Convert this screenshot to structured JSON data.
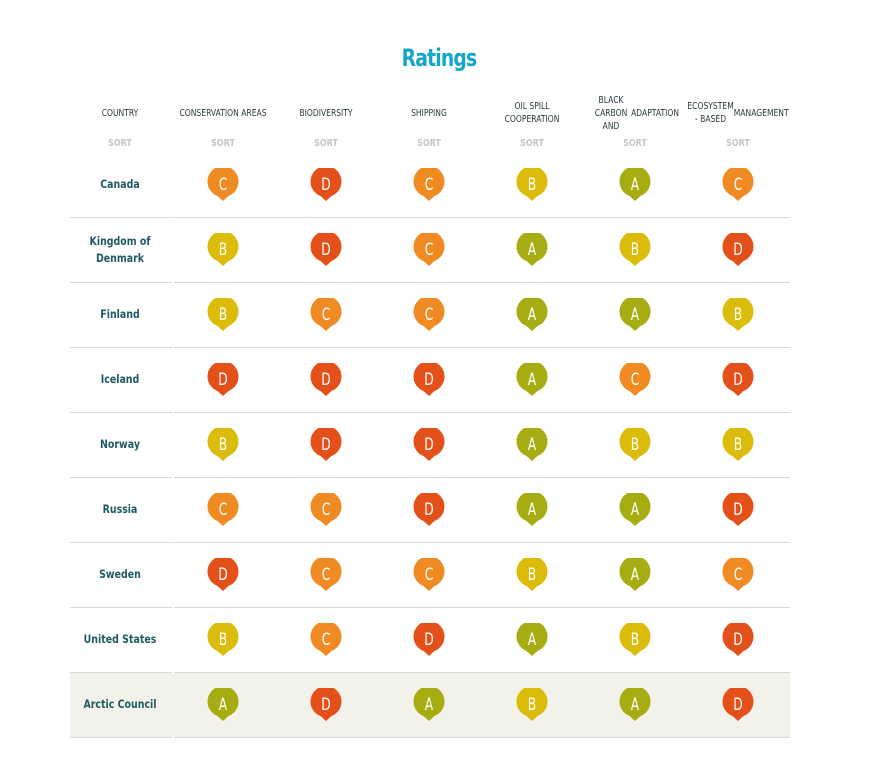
{
  "title": "Ratings",
  "colors": {
    "A": "#a5ad12",
    "B": "#dcbc0a",
    "C": "#f08a22",
    "D": "#e4501a",
    "title": "#12a7c9"
  },
  "sort_label": "SORT",
  "headers": [
    "COUNTRY",
    "CONSERVATION AREAS",
    "BIODIVERSITY",
    "SHIPPING",
    "OIL SPILL COOPERATION",
    "BLACK CARBON AND ADAPTATION",
    "ECOSYSTEM - BASED MANAGEMENT"
  ],
  "header_lines": [
    [
      "COUNTRY"
    ],
    [
      "CONSERVATION AREAS"
    ],
    [
      "BIODIVERSITY"
    ],
    [
      "SHIPPING"
    ],
    [
      "OIL SPILL COOPERATION"
    ],
    [
      "BLACK CARBON AND",
      "ADAPTATION"
    ],
    [
      "ECOSYSTEM - BASED",
      "MANAGEMENT"
    ]
  ],
  "rows": [
    {
      "country": "Canada",
      "country_lines": [
        "Canada"
      ],
      "ratings": [
        "C",
        "D",
        "C",
        "B",
        "A",
        "C"
      ]
    },
    {
      "country": "Kingdom of Denmark",
      "country_lines": [
        "Kingdom of",
        "Denmark"
      ],
      "ratings": [
        "B",
        "D",
        "C",
        "A",
        "B",
        "D"
      ]
    },
    {
      "country": "Finland",
      "country_lines": [
        "Finland"
      ],
      "ratings": [
        "B",
        "C",
        "C",
        "A",
        "A",
        "B"
      ]
    },
    {
      "country": "Iceland",
      "country_lines": [
        "Iceland"
      ],
      "ratings": [
        "D",
        "D",
        "D",
        "A",
        "C",
        "D"
      ]
    },
    {
      "country": "Norway",
      "country_lines": [
        "Norway"
      ],
      "ratings": [
        "B",
        "D",
        "D",
        "A",
        "B",
        "B"
      ]
    },
    {
      "country": "Russia",
      "country_lines": [
        "Russia"
      ],
      "ratings": [
        "C",
        "C",
        "D",
        "A",
        "A",
        "D"
      ]
    },
    {
      "country": "Sweden",
      "country_lines": [
        "Sweden"
      ],
      "ratings": [
        "D",
        "C",
        "C",
        "B",
        "A",
        "C"
      ]
    },
    {
      "country": "United States",
      "country_lines": [
        "United States"
      ],
      "ratings": [
        "B",
        "C",
        "D",
        "A",
        "B",
        "D"
      ]
    },
    {
      "country": "Arctic Council",
      "country_lines": [
        "Arctic Council"
      ],
      "ratings": [
        "A",
        "D",
        "A",
        "B",
        "A",
        "D"
      ],
      "highlighted": true
    }
  ]
}
